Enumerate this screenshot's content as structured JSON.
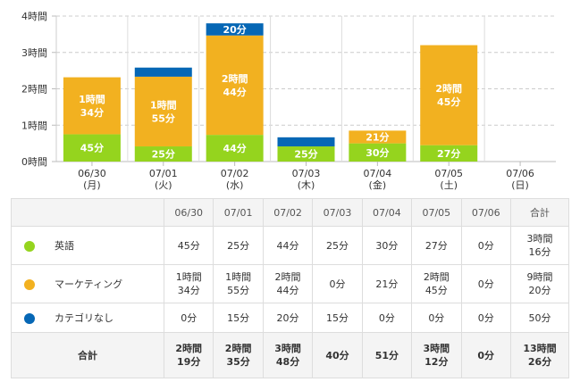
{
  "chart_data": {
    "type": "bar",
    "stacked": true,
    "categories": [
      "06/30",
      "07/01",
      "07/02",
      "07/03",
      "07/04",
      "07/05",
      "07/06"
    ],
    "weekdays": [
      "(月)",
      "(火)",
      "(水)",
      "(木)",
      "(金)",
      "(土)",
      "(日)"
    ],
    "y_ticks": [
      "0時間",
      "1時間",
      "2時間",
      "3時間",
      "4時間"
    ],
    "ylim_minutes": [
      0,
      240
    ],
    "grid": true,
    "series": [
      {
        "name": "英語",
        "color": "#95d41e",
        "values": [
          45,
          25,
          44,
          25,
          30,
          27,
          0
        ]
      },
      {
        "name": "マーケティング",
        "color": "#f2b120",
        "values": [
          94,
          115,
          164,
          0,
          21,
          165,
          0
        ]
      },
      {
        "name": "カテゴリなし",
        "color": "#0667b5",
        "values": [
          0,
          15,
          20,
          15,
          0,
          0,
          0
        ]
      }
    ]
  },
  "table": {
    "headers": [
      "06/30",
      "07/01",
      "07/02",
      "07/03",
      "07/04",
      "07/05",
      "07/06",
      "合計"
    ],
    "rows": [
      {
        "name": "英語",
        "color": "#95d41e",
        "cells": [
          "45分",
          "25分",
          "44分",
          "25分",
          "30分",
          "27分",
          "0分",
          "3時間\n16分"
        ]
      },
      {
        "name": "マーケティング",
        "color": "#f2b120",
        "cells": [
          "1時間\n34分",
          "1時間\n55分",
          "2時間\n44分",
          "0分",
          "21分",
          "2時間\n45分",
          "0分",
          "9時間\n20分"
        ]
      },
      {
        "name": "カテゴリなし",
        "color": "#0667b5",
        "cells": [
          "0分",
          "15分",
          "20分",
          "15分",
          "0分",
          "0分",
          "0分",
          "50分"
        ]
      }
    ],
    "total": {
      "label": "合計",
      "cells": [
        "2時間\n19分",
        "2時間\n35分",
        "3時間\n48分",
        "40分",
        "51分",
        "3時間\n12分",
        "0分",
        "13時間\n26分"
      ]
    }
  }
}
